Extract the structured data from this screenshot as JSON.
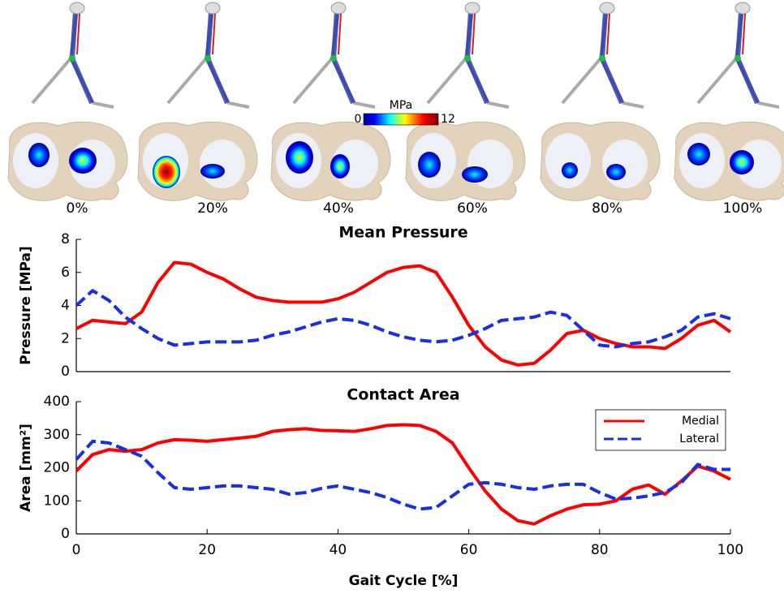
{
  "figure": {
    "colorbar": {
      "label": "MPa",
      "min": 0,
      "max": 12
    },
    "frame_labels": [
      "0%",
      "20%",
      "40%",
      "60%",
      "80%",
      "100%"
    ]
  },
  "chart_data": [
    {
      "type": "line",
      "title": "Mean Pressure",
      "y_label": "Pressure [MPa]",
      "x": [
        0,
        2.5,
        5,
        7.5,
        10,
        12.5,
        15,
        17.5,
        20,
        22.5,
        25,
        27.5,
        30,
        32.5,
        35,
        37.5,
        40,
        42.5,
        45,
        47.5,
        50,
        52.5,
        55,
        57.5,
        60,
        62.5,
        65,
        67.5,
        70,
        72.5,
        75,
        77.5,
        80,
        82.5,
        85,
        87.5,
        90,
        92.5,
        95,
        97.5,
        100
      ],
      "xlim": [
        0,
        100
      ],
      "ylim": [
        0,
        8
      ],
      "yticks": [
        0,
        2,
        4,
        6,
        8
      ],
      "series": [
        {
          "name": "Medial",
          "color": "#ff0000",
          "line_style": "solid",
          "values": [
            2.6,
            3.1,
            3.0,
            2.9,
            3.6,
            5.4,
            6.6,
            6.5,
            6.0,
            5.6,
            5.0,
            4.5,
            4.3,
            4.2,
            4.2,
            4.2,
            4.4,
            4.8,
            5.4,
            6.0,
            6.3,
            6.4,
            6.0,
            4.5,
            2.8,
            1.5,
            0.7,
            0.4,
            0.5,
            1.3,
            2.3,
            2.5,
            2.0,
            1.7,
            1.5,
            1.5,
            1.4,
            2.0,
            2.8,
            3.1,
            2.4
          ]
        },
        {
          "name": "Lateral",
          "color": "#1a2ee6",
          "line_style": "dashed",
          "values": [
            4.0,
            4.9,
            4.3,
            3.3,
            2.6,
            2.0,
            1.6,
            1.7,
            1.8,
            1.8,
            1.8,
            1.9,
            2.2,
            2.4,
            2.7,
            3.0,
            3.2,
            3.1,
            2.8,
            2.4,
            2.1,
            1.9,
            1.8,
            1.9,
            2.2,
            2.6,
            3.1,
            3.2,
            3.3,
            3.6,
            3.4,
            2.5,
            1.6,
            1.5,
            1.7,
            1.8,
            2.1,
            2.5,
            3.3,
            3.5,
            3.2
          ]
        }
      ]
    },
    {
      "type": "line",
      "title": "Contact Area",
      "y_label": "Area [mm²]",
      "x_label": "Gait Cycle [%]",
      "x": [
        0,
        2.5,
        5,
        7.5,
        10,
        12.5,
        15,
        17.5,
        20,
        22.5,
        25,
        27.5,
        30,
        32.5,
        35,
        37.5,
        40,
        42.5,
        45,
        47.5,
        50,
        52.5,
        55,
        57.5,
        60,
        62.5,
        65,
        67.5,
        70,
        72.5,
        75,
        77.5,
        80,
        82.5,
        85,
        87.5,
        90,
        92.5,
        95,
        97.5,
        100
      ],
      "xlim": [
        0,
        100
      ],
      "xticks": [
        0,
        20,
        40,
        60,
        80,
        100
      ],
      "ylim": [
        0,
        400
      ],
      "yticks": [
        0,
        100,
        200,
        300,
        400
      ],
      "legend": "upper right",
      "series": [
        {
          "name": "Medial",
          "color": "#ff0000",
          "line_style": "solid",
          "values": [
            190,
            240,
            255,
            250,
            255,
            275,
            285,
            283,
            280,
            285,
            290,
            295,
            310,
            315,
            318,
            313,
            312,
            310,
            318,
            328,
            330,
            328,
            310,
            275,
            200,
            130,
            75,
            40,
            30,
            55,
            75,
            88,
            90,
            100,
            135,
            148,
            120,
            160,
            205,
            190,
            165
          ]
        },
        {
          "name": "Lateral",
          "color": "#1a2ee6",
          "line_style": "dashed",
          "values": [
            225,
            280,
            275,
            255,
            235,
            185,
            140,
            135,
            140,
            145,
            145,
            140,
            135,
            120,
            125,
            138,
            145,
            135,
            125,
            110,
            90,
            75,
            80,
            115,
            150,
            155,
            150,
            140,
            135,
            145,
            150,
            150,
            125,
            105,
            108,
            115,
            125,
            155,
            210,
            195,
            195
          ]
        }
      ]
    }
  ]
}
